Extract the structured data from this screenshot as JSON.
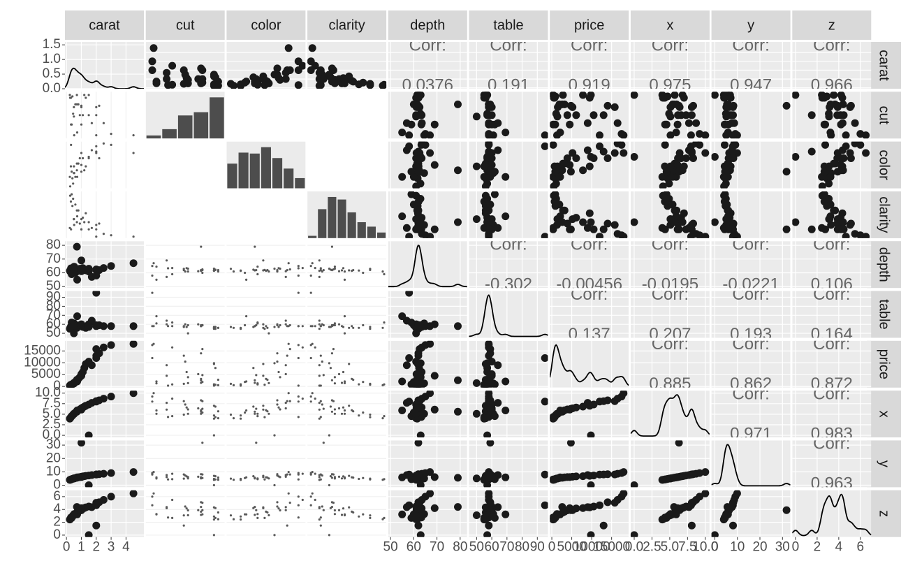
{
  "chart_data": {
    "type": "pairs",
    "variables": [
      "carat",
      "cut",
      "color",
      "clarity",
      "depth",
      "table",
      "price",
      "x",
      "y",
      "z"
    ],
    "corr_label": "Corr:",
    "correlations": [
      [
        null,
        null,
        null,
        null,
        0.0376,
        0.191,
        0.919,
        0.975,
        0.947,
        0.966
      ],
      [
        null,
        null,
        null,
        null,
        null,
        null,
        null,
        null,
        null,
        null
      ],
      [
        null,
        null,
        null,
        null,
        null,
        null,
        null,
        null,
        null,
        null
      ],
      [
        null,
        null,
        null,
        null,
        null,
        null,
        null,
        null,
        null,
        null
      ],
      [
        null,
        null,
        null,
        null,
        null,
        -0.302,
        -0.00456,
        -0.0195,
        -0.0221,
        0.106
      ],
      [
        null,
        null,
        null,
        null,
        null,
        null,
        0.137,
        0.207,
        0.193,
        0.164
      ],
      [
        null,
        null,
        null,
        null,
        null,
        null,
        null,
        0.885,
        0.862,
        0.872
      ],
      [
        null,
        null,
        null,
        null,
        null,
        null,
        null,
        null,
        0.971,
        0.983
      ],
      [
        null,
        null,
        null,
        null,
        null,
        null,
        null,
        null,
        null,
        0.963
      ],
      [
        null,
        null,
        null,
        null,
        null,
        null,
        null,
        null,
        null,
        null
      ]
    ],
    "ranges": [
      [
        -0.1,
        5.2
      ],
      null,
      null,
      null,
      [
        49,
        83
      ],
      [
        45,
        97
      ],
      [
        -500,
        19300
      ],
      [
        -0.5,
        10.6
      ],
      [
        -1.5,
        33.5
      ],
      [
        -0.3,
        7
      ]
    ],
    "ticks": [
      [
        0,
        1,
        2,
        3,
        4
      ],
      null,
      null,
      null,
      [
        50,
        60,
        70,
        80
      ],
      [
        50,
        60,
        70,
        80,
        90
      ],
      [
        0,
        5000,
        10000,
        15000
      ],
      [
        {
          "value": 0,
          "label": "0.0"
        },
        {
          "value": 2.5,
          "label": "2.5"
        },
        {
          "value": 5,
          "label": "5.0"
        },
        {
          "value": 7.5,
          "label": "7.5"
        },
        {
          "value": 10,
          "label": "10.0"
        }
      ],
      [
        0,
        10,
        20,
        30
      ],
      [
        0,
        2,
        4,
        6
      ]
    ],
    "diag_ylim": [
      0,
      1.6
    ],
    "diag_yticks": [
      {
        "value": 0,
        "label": "0.0"
      },
      0.5,
      {
        "value": 1,
        "label": "1.0"
      },
      1.5
    ],
    "counts": [
      null,
      [
        1610,
        4906,
        12082,
        13791,
        21551
      ],
      [
        6775,
        9797,
        9542,
        11292,
        8304,
        5422,
        2808
      ],
      [
        741,
        9194,
        13065,
        12258,
        8171,
        5066,
        3655,
        1790
      ],
      null,
      null,
      null,
      null,
      null,
      null
    ],
    "samples": [
      [
        0.23,
        0.31,
        0.5,
        0.7,
        0.9,
        1.0,
        1.2,
        1.5,
        2.0,
        2.5,
        0.4,
        0.3,
        0.8,
        1.1,
        0.52,
        1.7,
        3.0,
        4.5,
        0.6,
        0.35,
        1.3,
        0.45,
        2.2,
        0.25,
        0.72,
        1.0,
        2.0,
        0.7,
        1.0,
        0.5,
        1.5,
        2.0
      ],
      [
        5,
        2,
        4,
        5,
        3,
        4,
        5,
        3,
        4,
        2,
        5,
        5,
        4,
        3,
        1,
        2,
        1,
        1,
        4,
        2,
        5,
        3,
        4,
        5,
        1,
        2,
        1,
        4,
        4,
        3,
        5,
        3
      ],
      [
        2,
        7,
        3,
        4,
        5,
        6,
        3,
        5,
        6,
        7,
        2,
        4,
        4,
        5,
        3,
        6,
        7,
        6,
        2,
        3,
        4,
        1,
        5,
        1,
        2,
        4,
        7,
        3,
        3,
        4,
        5,
        6
      ],
      [
        2,
        2,
        4,
        5,
        3,
        4,
        3,
        2,
        3,
        1,
        6,
        7,
        5,
        4,
        3,
        2,
        1,
        1,
        6,
        8,
        5,
        7,
        3,
        8,
        4,
        2,
        1,
        3,
        2,
        4,
        3,
        2
      ],
      [
        61.5,
        63.3,
        61.8,
        62.0,
        63.0,
        61.2,
        62.3,
        61.0,
        62.5,
        63.5,
        61.7,
        62.1,
        61.5,
        63.4,
        64.5,
        57.0,
        65.0,
        67.0,
        60.0,
        59.0,
        61.8,
        62.9,
        62.0,
        61.0,
        55.0,
        69.0,
        58.0,
        79.0,
        62.0,
        61.0,
        63.0,
        62.0
      ],
      [
        55,
        58,
        58,
        56,
        59,
        60,
        57,
        60,
        59,
        58,
        56,
        55,
        58,
        57,
        61,
        64,
        58,
        58,
        59,
        62,
        56,
        57,
        59,
        56,
        69,
        60,
        95,
        58,
        59,
        50,
        57,
        58
      ],
      [
        326,
        335,
        1500,
        2800,
        3900,
        5200,
        7800,
        10500,
        15800,
        16500,
        900,
        700,
        3200,
        6100,
        1300,
        9000,
        17500,
        18000,
        1900,
        850,
        9500,
        1100,
        14000,
        500,
        2100,
        4500,
        12000,
        2600,
        4800,
        1400,
        9800,
        13000
      ],
      [
        3.95,
        4.34,
        5.1,
        5.7,
        6.15,
        6.4,
        6.8,
        7.3,
        8.1,
        8.7,
        4.7,
        4.3,
        5.95,
        6.6,
        5.1,
        7.7,
        9.2,
        10.0,
        5.4,
        4.55,
        7.0,
        4.9,
        8.3,
        4.05,
        5.9,
        6.1,
        8.0,
        5.6,
        6.3,
        5.1,
        0,
        8.1
      ],
      [
        3.98,
        4.35,
        5.08,
        5.72,
        6.1,
        6.35,
        6.76,
        7.28,
        8.05,
        8.6,
        4.72,
        4.31,
        5.92,
        6.58,
        5.05,
        7.6,
        9.1,
        9.9,
        5.38,
        4.5,
        7.02,
        4.9,
        8.25,
        4.07,
        5.85,
        6.05,
        8.0,
        5.55,
        31.8,
        5.1,
        0,
        8.06
      ],
      [
        2.43,
        2.75,
        3.15,
        3.54,
        3.86,
        3.9,
        4.22,
        4.46,
        5.05,
        5.5,
        2.9,
        2.67,
        3.66,
        4.17,
        3.28,
        4.36,
        6.0,
        6.5,
        3.24,
        2.67,
        4.33,
        3.08,
        5.13,
        2.48,
        3.23,
        4.2,
        4.66,
        4.4,
        3.9,
        3.1,
        0,
        1.5
      ]
    ]
  }
}
